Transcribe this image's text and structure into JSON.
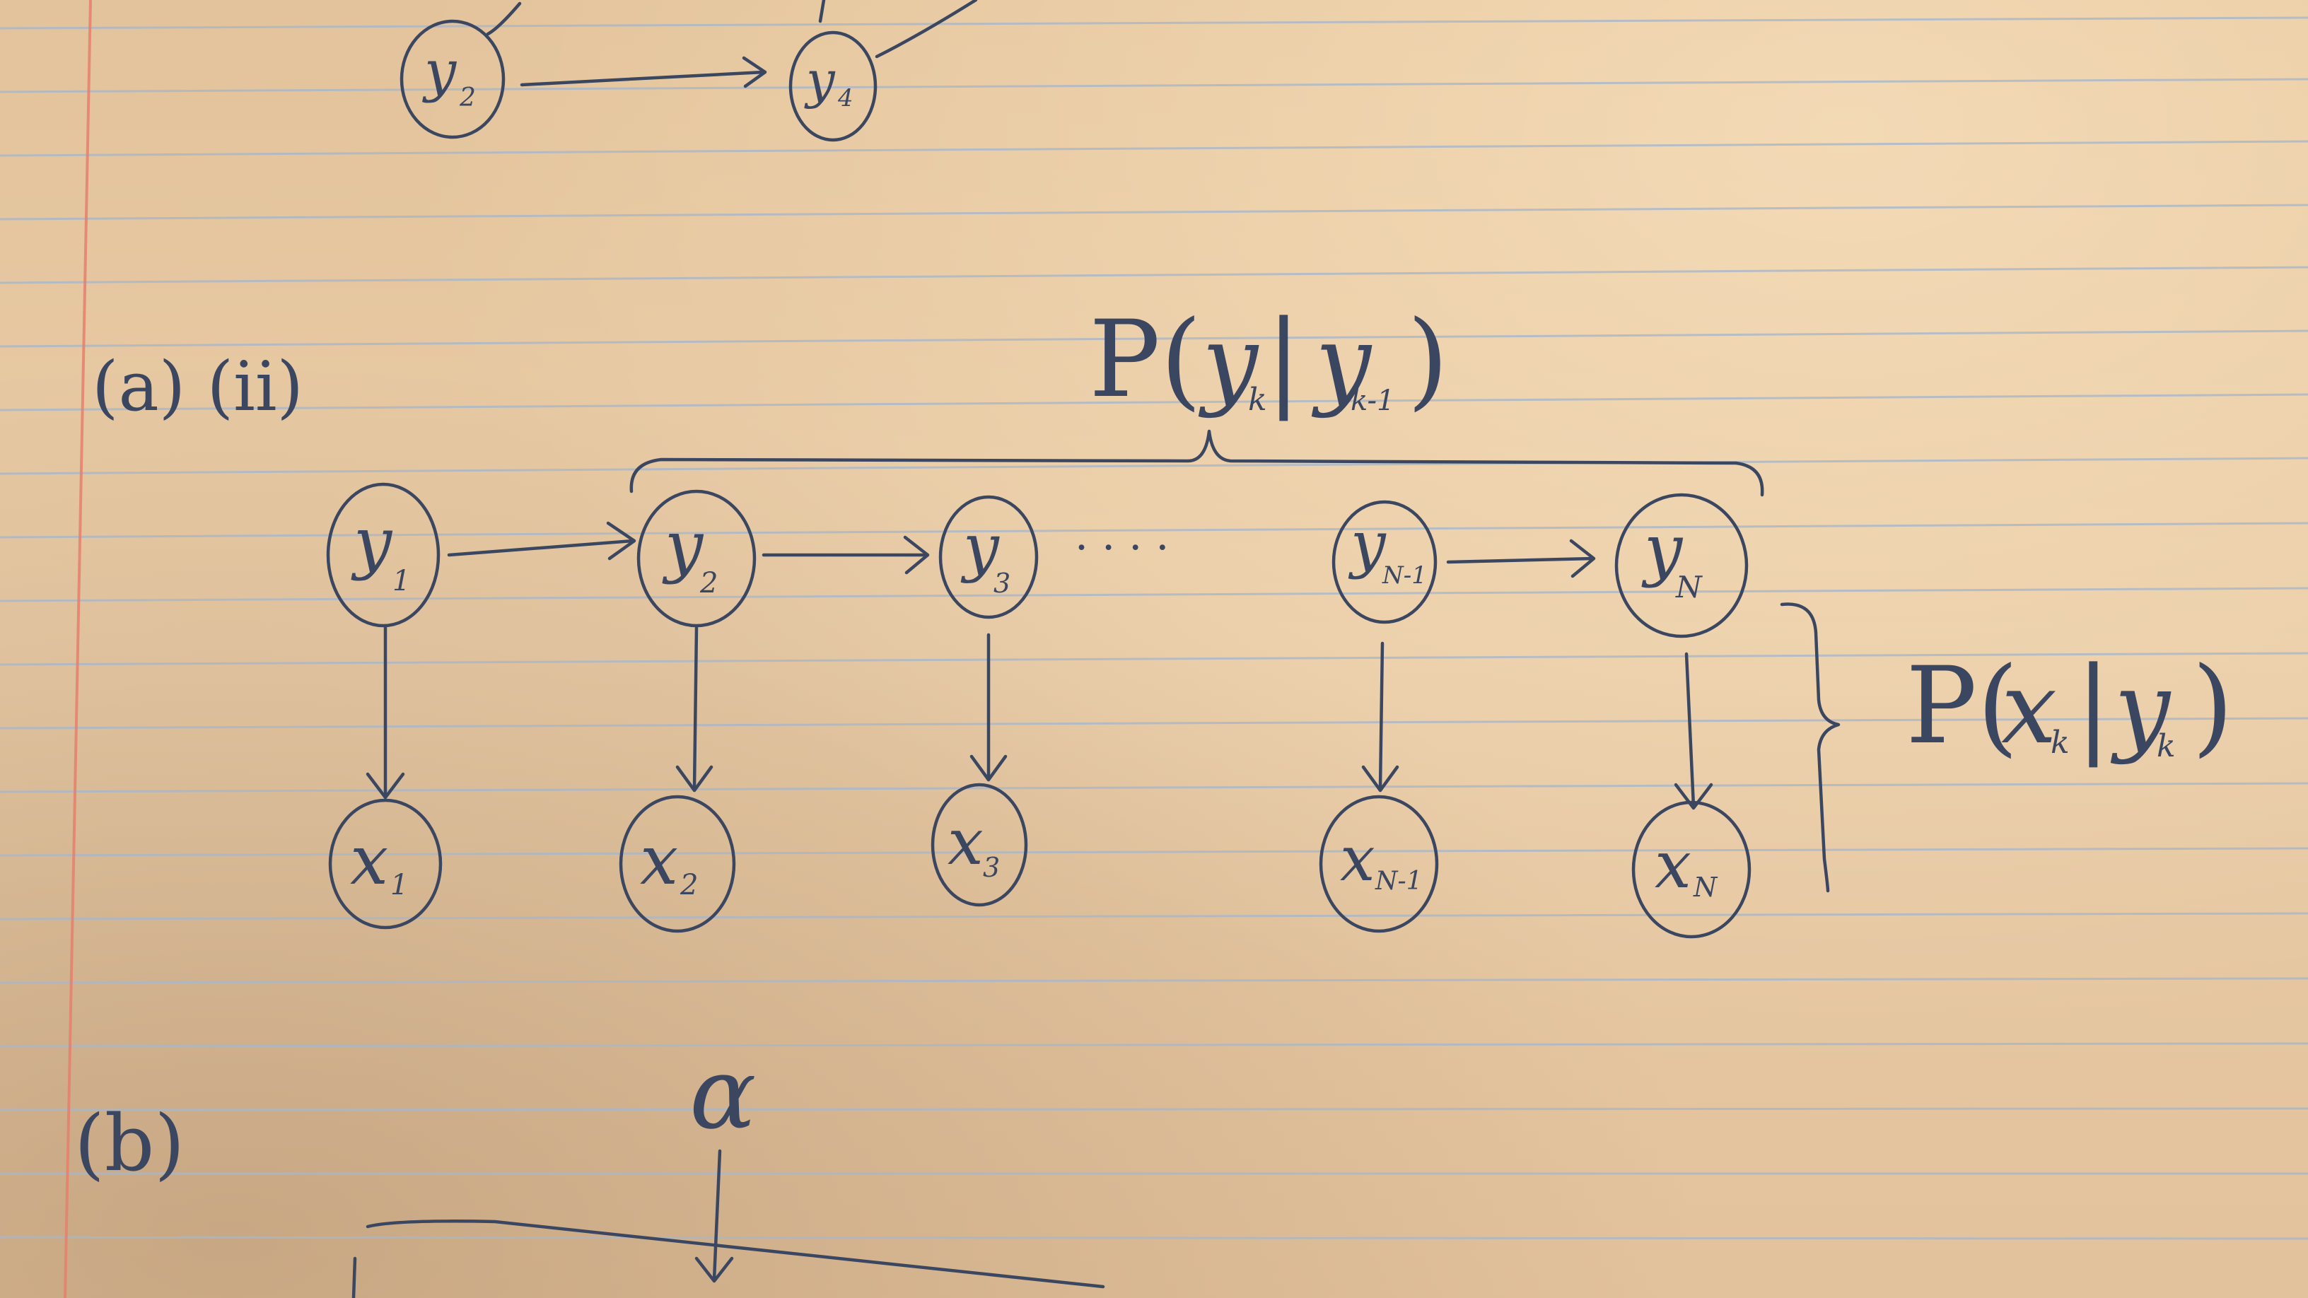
{
  "sections": {
    "a_ii_label": "(a) (ii)",
    "b_label": "(b)"
  },
  "top_partial": {
    "left_node": "y",
    "left_node_sub": "2",
    "right_node": "y",
    "right_node_sub": "4"
  },
  "hmm": {
    "hidden_nodes": [
      {
        "label": "y",
        "sub": "1"
      },
      {
        "label": "y",
        "sub": "2"
      },
      {
        "label": "y",
        "sub": "3"
      },
      {
        "label": "y",
        "sub": "N-1"
      },
      {
        "label": "y",
        "sub": "N"
      }
    ],
    "observed_nodes": [
      {
        "label": "x",
        "sub": "1"
      },
      {
        "label": "x",
        "sub": "2"
      },
      {
        "label": "x",
        "sub": "3"
      },
      {
        "label": "x",
        "sub": "N-1"
      },
      {
        "label": "x",
        "sub": "N"
      }
    ],
    "ellipsis": "· · · ·",
    "transition_annotation": {
      "open": "P(",
      "var": "y",
      "sub": "k",
      "bar": " | ",
      "cond": "y",
      "cond_sub": "k-1",
      "close": ")"
    },
    "emission_annotation": {
      "open": "P(",
      "var": "x",
      "sub": "k",
      "bar": " | ",
      "cond": "y",
      "cond_sub": "k",
      "close": ")"
    }
  },
  "part_b": {
    "alpha": "α"
  },
  "colors": {
    "ink": "#3b4660",
    "paper": "#e6c9a3",
    "rule": "#a9b7c9",
    "margin": "#e6806d"
  }
}
